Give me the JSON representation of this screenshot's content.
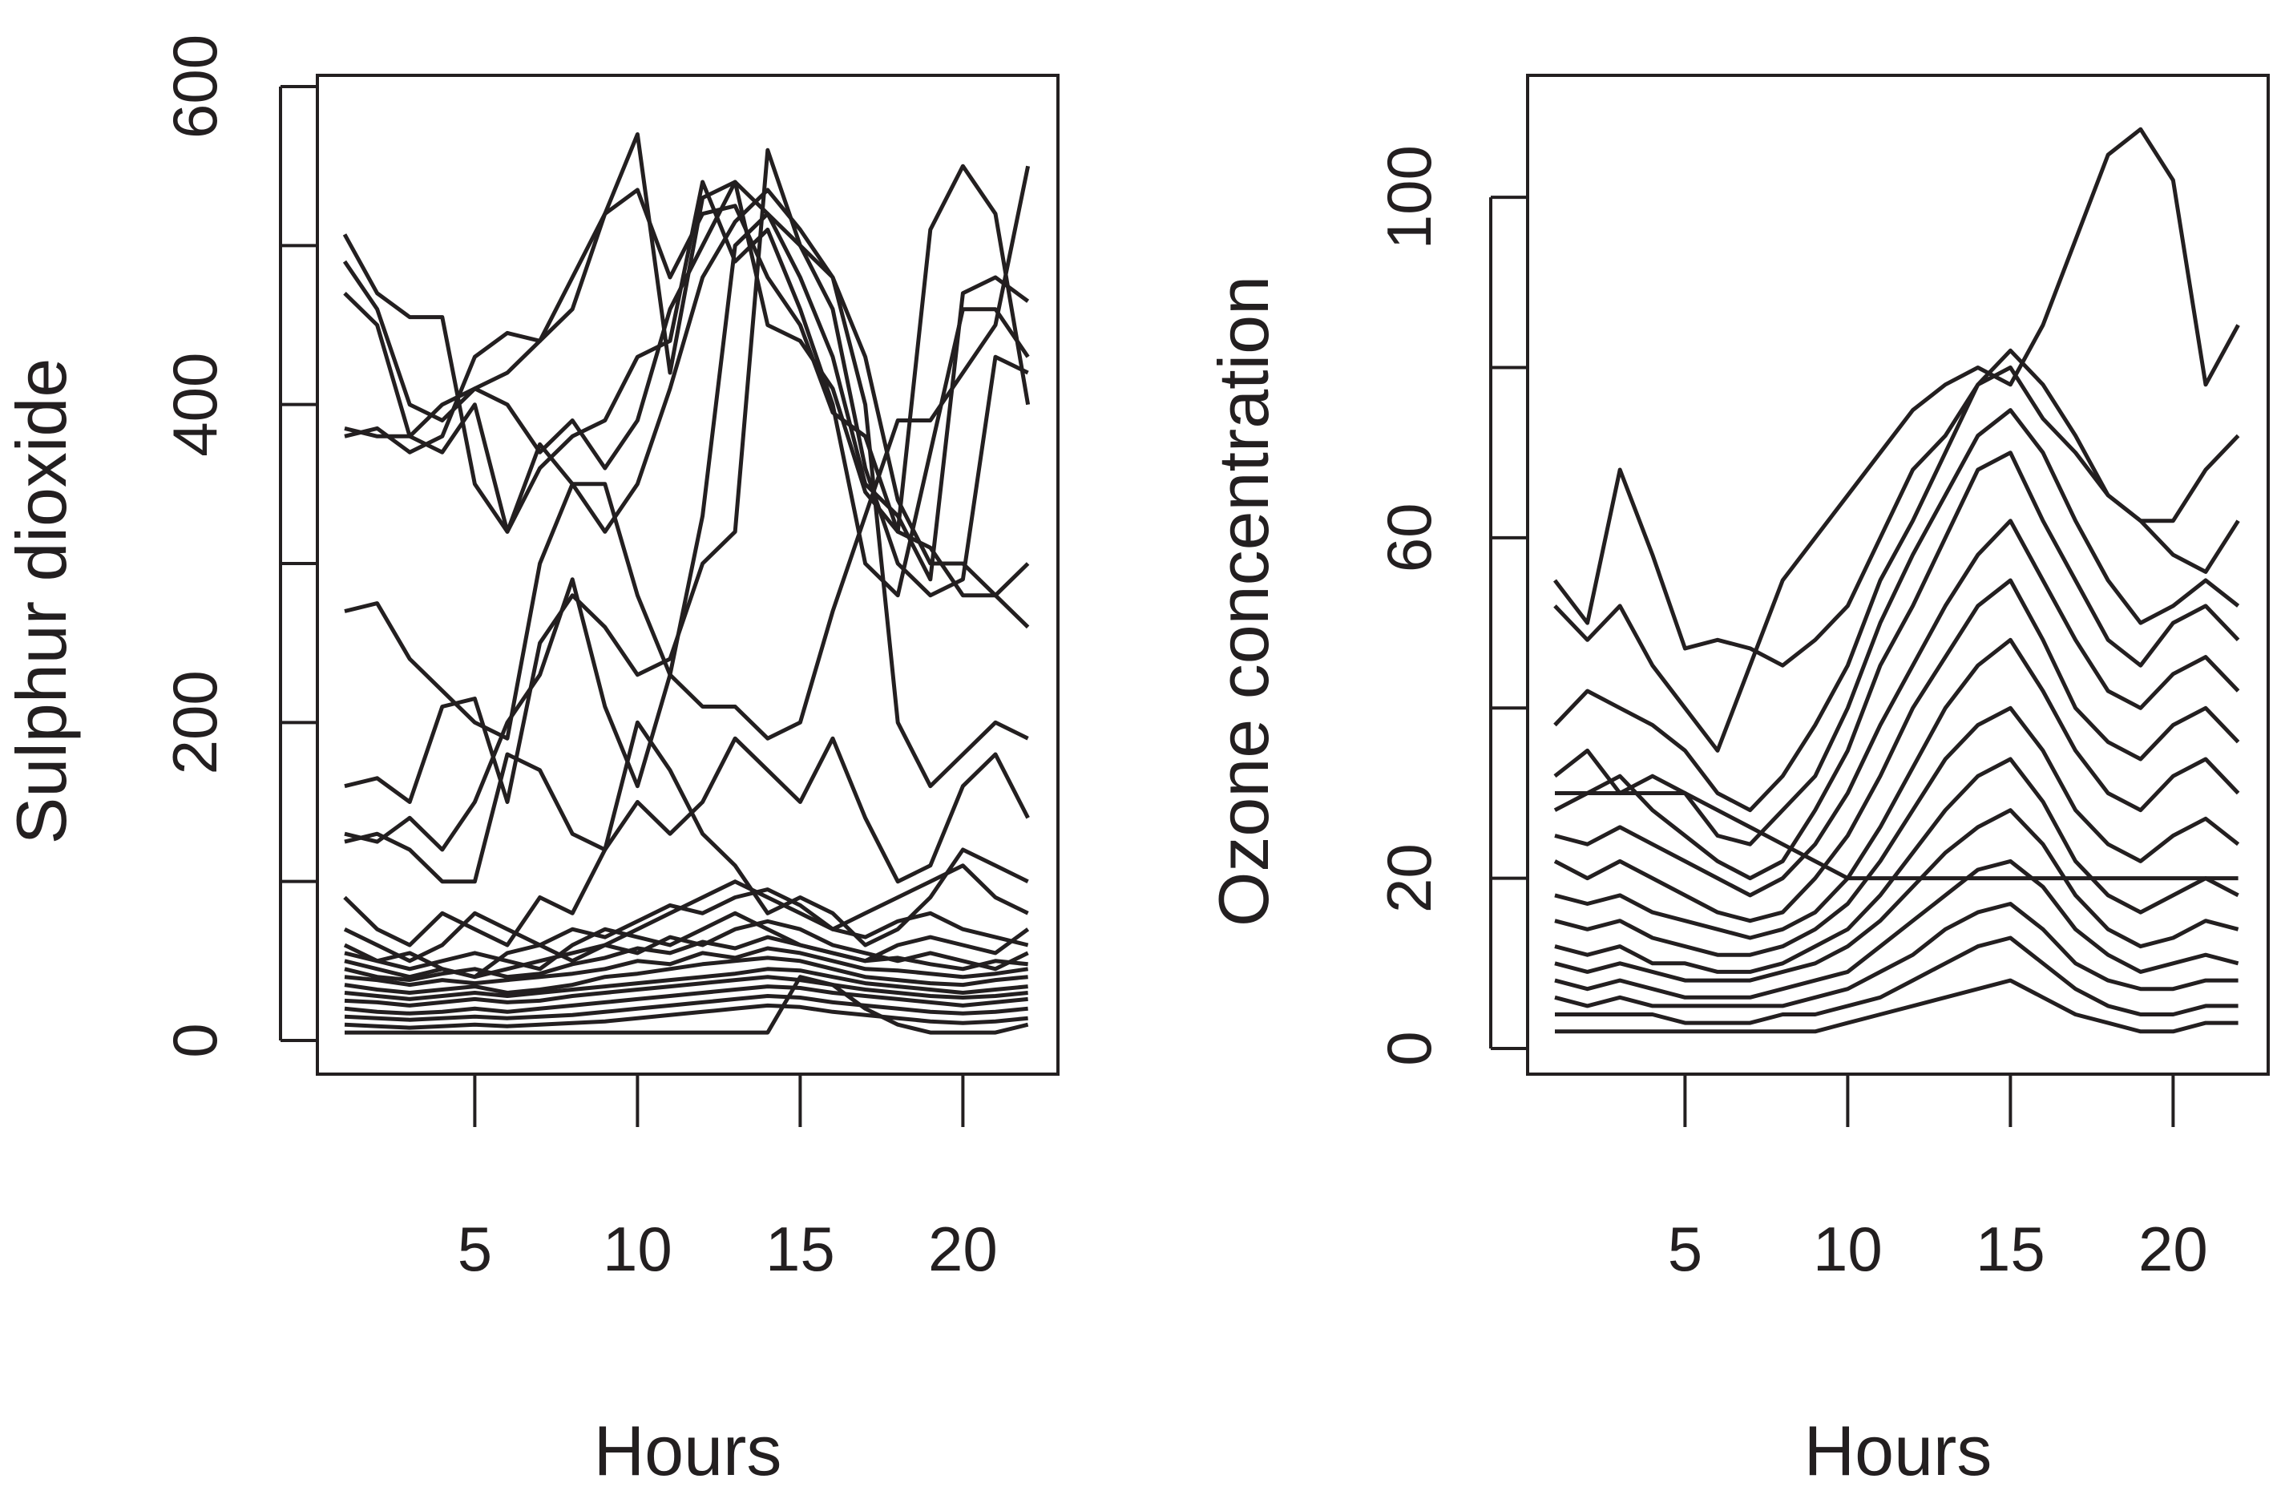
{
  "chart_data": [
    {
      "type": "line",
      "xlabel": "Hours",
      "ylabel": "Sulphur dioxide",
      "x": [
        1,
        2,
        3,
        4,
        5,
        6,
        7,
        8,
        9,
        10,
        11,
        12,
        13,
        14,
        15,
        16,
        17,
        18,
        19,
        20,
        21,
        22
      ],
      "xticks": [
        5,
        10,
        15,
        20
      ],
      "yticks": [
        0,
        200,
        400,
        600
      ],
      "ylim": [
        0,
        600
      ],
      "series": [
        {
          "values": [
            507,
            470,
            455,
            455,
            350,
            320,
            375,
            350,
            320,
            350,
            410,
            480,
            515,
            535,
            510,
            480,
            430,
            340,
            300,
            300,
            280,
            260
          ]
        },
        {
          "values": [
            490,
            460,
            400,
            390,
            410,
            400,
            370,
            390,
            360,
            390,
            460,
            500,
            540,
            520,
            480,
            430,
            350,
            330,
            290,
            470,
            480,
            465
          ]
        },
        {
          "values": [
            470,
            450,
            380,
            370,
            400,
            320,
            360,
            380,
            390,
            430,
            440,
            540,
            490,
            510,
            460,
            400,
            300,
            280,
            370,
            460,
            460,
            430
          ]
        },
        {
          "values": [
            380,
            385,
            370,
            380,
            430,
            445,
            440,
            460,
            520,
            535,
            480,
            520,
            525,
            480,
            450,
            395,
            380,
            320,
            310,
            280,
            280,
            300
          ]
        },
        {
          "values": [
            385,
            380,
            380,
            400,
            410,
            420,
            440,
            480,
            520,
            570,
            420,
            530,
            540,
            450,
            440,
            410,
            345,
            320,
            510,
            550,
            520,
            400
          ]
        },
        {
          "values": [
            270,
            275,
            240,
            220,
            200,
            190,
            300,
            350,
            350,
            280,
            230,
            210,
            210,
            190,
            200,
            270,
            330,
            390,
            390,
            420,
            450,
            550
          ]
        },
        {
          "values": [
            160,
            165,
            150,
            210,
            215,
            150,
            250,
            280,
            260,
            230,
            240,
            300,
            320,
            560,
            500,
            460,
            360,
            300,
            280,
            290,
            430,
            420
          ]
        },
        {
          "values": [
            130,
            125,
            140,
            120,
            150,
            200,
            230,
            290,
            210,
            160,
            230,
            330,
            500,
            520,
            500,
            480,
            400,
            200,
            160,
            180,
            200,
            190
          ]
        },
        {
          "values": [
            125,
            130,
            120,
            100,
            100,
            180,
            170,
            130,
            120,
            150,
            130,
            150,
            190,
            170,
            150,
            190,
            140,
            100,
            110,
            160,
            180,
            140
          ]
        },
        {
          "values": [
            90,
            70,
            60,
            80,
            70,
            60,
            90,
            80,
            120,
            200,
            170,
            130,
            110,
            80,
            90,
            80,
            60,
            70,
            90,
            120,
            110,
            100
          ]
        },
        {
          "values": [
            70,
            60,
            50,
            60,
            80,
            70,
            60,
            50,
            60,
            70,
            80,
            90,
            100,
            90,
            80,
            70,
            80,
            90,
            100,
            110,
            90,
            80
          ]
        },
        {
          "values": [
            60,
            50,
            55,
            45,
            40,
            55,
            60,
            70,
            65,
            75,
            85,
            80,
            90,
            95,
            85,
            70,
            65,
            75,
            80,
            70,
            65,
            60
          ]
        },
        {
          "values": [
            55,
            50,
            45,
            50,
            55,
            50,
            45,
            60,
            70,
            65,
            60,
            70,
            80,
            70,
            60,
            55,
            50,
            60,
            65,
            60,
            55,
            70
          ]
        },
        {
          "values": [
            50,
            45,
            40,
            45,
            40,
            45,
            50,
            55,
            60,
            55,
            65,
            60,
            70,
            75,
            70,
            60,
            55,
            50,
            55,
            50,
            45,
            55
          ]
        },
        {
          "values": [
            45,
            40,
            38,
            42,
            45,
            40,
            42,
            48,
            52,
            58,
            55,
            62,
            58,
            65,
            60,
            55,
            50,
            52,
            48,
            45,
            50,
            48
          ]
        },
        {
          "values": [
            40,
            38,
            35,
            38,
            36,
            38,
            40,
            42,
            45,
            50,
            48,
            55,
            52,
            58,
            55,
            50,
            45,
            44,
            42,
            40,
            42,
            45
          ]
        },
        {
          "values": [
            35,
            32,
            30,
            32,
            34,
            30,
            32,
            35,
            40,
            42,
            45,
            48,
            50,
            52,
            50,
            45,
            40,
            38,
            36,
            35,
            38,
            40
          ]
        },
        {
          "values": [
            30,
            28,
            26,
            28,
            30,
            28,
            30,
            32,
            34,
            36,
            38,
            40,
            42,
            45,
            44,
            40,
            36,
            34,
            32,
            30,
            32,
            34
          ]
        },
        {
          "values": [
            25,
            24,
            22,
            24,
            26,
            24,
            25,
            28,
            30,
            32,
            34,
            36,
            38,
            40,
            38,
            35,
            32,
            30,
            28,
            27,
            28,
            30
          ]
        },
        {
          "values": [
            20,
            18,
            17,
            18,
            20,
            18,
            20,
            22,
            24,
            26,
            28,
            30,
            32,
            34,
            33,
            30,
            28,
            26,
            24,
            22,
            24,
            26
          ]
        },
        {
          "values": [
            15,
            14,
            13,
            14,
            15,
            14,
            15,
            16,
            18,
            20,
            22,
            24,
            26,
            28,
            27,
            24,
            22,
            20,
            18,
            17,
            18,
            20
          ]
        },
        {
          "values": [
            10,
            9,
            8,
            9,
            10,
            9,
            10,
            11,
            12,
            14,
            16,
            18,
            20,
            22,
            21,
            18,
            16,
            14,
            12,
            11,
            12,
            14
          ]
        },
        {
          "values": [
            5,
            5,
            5,
            5,
            5,
            5,
            5,
            5,
            5,
            5,
            5,
            5,
            5,
            5,
            40,
            35,
            20,
            10,
            5,
            5,
            5,
            10
          ]
        }
      ]
    },
    {
      "type": "line",
      "xlabel": "Hours",
      "ylabel": "Ozone concentration",
      "x": [
        1,
        2,
        3,
        4,
        5,
        6,
        7,
        8,
        9,
        10,
        11,
        12,
        13,
        14,
        15,
        16,
        17,
        18,
        19,
        20,
        21,
        22
      ],
      "xticks": [
        5,
        10,
        15,
        20
      ],
      "yticks": [
        0,
        20,
        60,
        100
      ],
      "ylim": [
        0,
        110
      ],
      "series": [
        {
          "values": [
            52,
            48,
            52,
            45,
            40,
            35,
            45,
            55,
            60,
            65,
            70,
            75,
            78,
            80,
            78,
            85,
            95,
            105,
            108,
            102,
            78,
            85
          ]
        },
        {
          "values": [
            55,
            50,
            68,
            58,
            47,
            48,
            47,
            45,
            48,
            52,
            60,
            68,
            72,
            78,
            80,
            74,
            70,
            65,
            62,
            62,
            68,
            72
          ]
        },
        {
          "values": [
            38,
            42,
            40,
            38,
            35,
            30,
            28,
            32,
            38,
            45,
            55,
            62,
            70,
            78,
            82,
            78,
            72,
            65,
            62,
            58,
            56,
            62
          ]
        },
        {
          "values": [
            32,
            35,
            30,
            32,
            30,
            25,
            24,
            28,
            32,
            40,
            50,
            58,
            65,
            72,
            75,
            70,
            62,
            55,
            50,
            52,
            55,
            52
          ]
        },
        {
          "values": [
            28,
            30,
            32,
            28,
            25,
            22,
            20,
            22,
            28,
            35,
            45,
            52,
            60,
            68,
            70,
            62,
            55,
            48,
            45,
            50,
            52,
            48
          ]
        },
        {
          "values": [
            25,
            24,
            26,
            24,
            22,
            20,
            18,
            20,
            24,
            30,
            38,
            45,
            52,
            58,
            62,
            55,
            48,
            42,
            40,
            44,
            46,
            42
          ]
        },
        {
          "values": [
            22,
            20,
            22,
            20,
            18,
            16,
            15,
            16,
            20,
            25,
            32,
            40,
            46,
            52,
            55,
            48,
            40,
            36,
            34,
            38,
            40,
            36
          ]
        },
        {
          "values": [
            18,
            17,
            18,
            16,
            15,
            14,
            13,
            14,
            16,
            20,
            26,
            33,
            40,
            45,
            48,
            42,
            35,
            30,
            28,
            32,
            34,
            30
          ]
        },
        {
          "values": [
            15,
            14,
            15,
            13,
            12,
            11,
            11,
            12,
            14,
            17,
            22,
            28,
            34,
            38,
            40,
            35,
            28,
            24,
            22,
            25,
            27,
            24
          ]
        },
        {
          "values": [
            12,
            11,
            12,
            10,
            10,
            9,
            9,
            10,
            12,
            14,
            18,
            23,
            28,
            32,
            34,
            29,
            22,
            18,
            16,
            18,
            20,
            18
          ]
        },
        {
          "values": [
            10,
            9,
            10,
            9,
            8,
            8,
            8,
            9,
            10,
            12,
            15,
            19,
            23,
            26,
            28,
            24,
            18,
            14,
            12,
            13,
            15,
            14
          ]
        },
        {
          "values": [
            8,
            7,
            8,
            7,
            6,
            6,
            6,
            7,
            8,
            9,
            12,
            15,
            18,
            21,
            22,
            19,
            14,
            11,
            9,
            10,
            11,
            10
          ]
        },
        {
          "values": [
            6,
            5,
            6,
            5,
            5,
            5,
            5,
            5,
            6,
            7,
            9,
            11,
            14,
            16,
            17,
            14,
            10,
            8,
            7,
            7,
            8,
            8
          ]
        },
        {
          "values": [
            4,
            4,
            4,
            4,
            3,
            3,
            3,
            4,
            4,
            5,
            6,
            8,
            10,
            12,
            13,
            10,
            7,
            5,
            4,
            4,
            5,
            5
          ]
        },
        {
          "values": [
            2,
            2,
            2,
            2,
            2,
            2,
            2,
            2,
            2,
            3,
            4,
            5,
            6,
            7,
            8,
            6,
            4,
            3,
            2,
            2,
            3,
            3
          ]
        },
        {
          "values": [
            30,
            30,
            30,
            30,
            30,
            28,
            26,
            24,
            22,
            20,
            20,
            20,
            20,
            20,
            20,
            20,
            20,
            20,
            20,
            20,
            20,
            20
          ]
        }
      ]
    }
  ]
}
